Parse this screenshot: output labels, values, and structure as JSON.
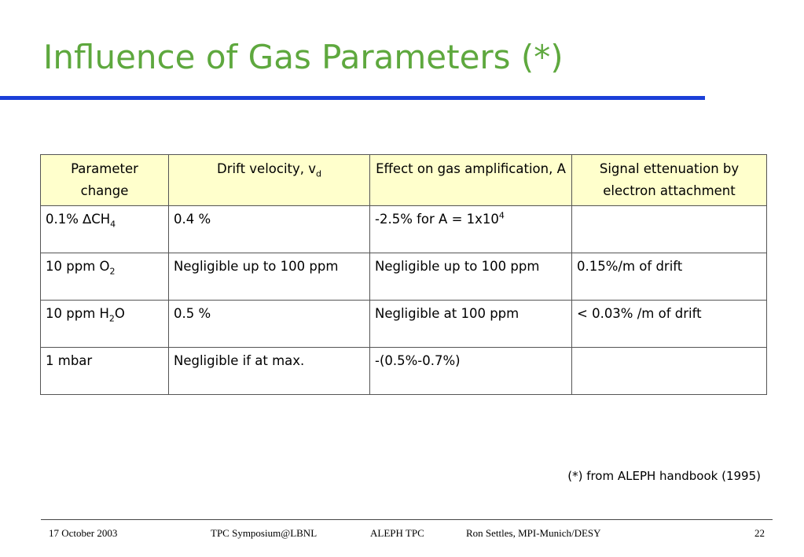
{
  "title": "Influence of Gas Parameters (*)",
  "table": {
    "header": [
      "Parameter change",
      [
        "Drift velocity, v",
        {
          "sub": "d"
        }
      ],
      "Effect on gas amplification, A",
      "Signal ettenuation by electron attachment"
    ],
    "rows": [
      [
        [
          "0.1% ∆CH",
          {
            "sub": "4"
          }
        ],
        "0.4 %",
        [
          "-2.5% for A = 1x10",
          {
            "sup": "4"
          }
        ],
        null
      ],
      [
        [
          "10 ppm O",
          {
            "sub": "2"
          }
        ],
        "Negligible up to 100 ppm",
        "Negligible up to 100 ppm",
        "0.15%/m of drift"
      ],
      [
        [
          "10 ppm H",
          {
            "sub": "2"
          },
          "O"
        ],
        "0.5 %",
        "Negligible at 100 ppm",
        "< 0.03% /m of drift"
      ],
      [
        "1 mbar",
        "Negligible if at max.",
        "-(0.5%-0.7%)",
        null
      ]
    ]
  },
  "footnote": "(*) from ALEPH handbook (1995)",
  "footer": {
    "date": "17 October 2003",
    "event": "TPC Symposium@LBNL",
    "project": "ALEPH TPC",
    "author": "Ron Settles, MPI-Munich/DESY",
    "page": "22"
  }
}
